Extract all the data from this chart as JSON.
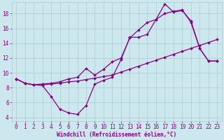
{
  "xlabel": "Windchill (Refroidissement éolien,°C)",
  "background_color": "#cce8ee",
  "grid_color": "#aacccc",
  "line_color": "#880088",
  "xlim": [
    -0.5,
    23.5
  ],
  "ylim": [
    3.5,
    19.5
  ],
  "xticks": [
    0,
    1,
    2,
    3,
    4,
    5,
    6,
    7,
    8,
    9,
    10,
    11,
    12,
    13,
    14,
    15,
    16,
    17,
    18,
    19,
    20,
    21,
    22,
    23
  ],
  "yticks": [
    4,
    6,
    8,
    10,
    12,
    14,
    16,
    18
  ],
  "series1_x": [
    0,
    1,
    2,
    3,
    4,
    5,
    6,
    7,
    8,
    9,
    10,
    11,
    12,
    13,
    14,
    15,
    16,
    17,
    18,
    19,
    20,
    21,
    22,
    23
  ],
  "series1_y": [
    9.2,
    8.6,
    8.4,
    8.3,
    6.8,
    5.1,
    4.6,
    4.4,
    5.6,
    8.5,
    9.0,
    9.4,
    11.8,
    14.8,
    14.8,
    15.2,
    17.2,
    19.3,
    18.2,
    18.4,
    17.0,
    13.3,
    11.6,
    11.6
  ],
  "series2_x": [
    0,
    1,
    2,
    3,
    4,
    5,
    6,
    7,
    8,
    9,
    10,
    11,
    12,
    13,
    14,
    15,
    16,
    17,
    18,
    19,
    20,
    21,
    22,
    23
  ],
  "series2_y": [
    9.2,
    8.6,
    8.4,
    8.4,
    8.5,
    8.6,
    8.8,
    8.9,
    9.1,
    9.3,
    9.5,
    9.7,
    10.1,
    10.5,
    10.9,
    11.3,
    11.7,
    12.1,
    12.5,
    12.9,
    13.3,
    13.7,
    14.1,
    14.5
  ],
  "series3_x": [
    0,
    1,
    2,
    3,
    4,
    5,
    6,
    7,
    8,
    9,
    10,
    11,
    12,
    13,
    14,
    15,
    16,
    17,
    18,
    19,
    20,
    21,
    22,
    23
  ],
  "series3_y": [
    9.2,
    8.6,
    8.4,
    8.5,
    8.6,
    8.8,
    9.2,
    9.4,
    10.6,
    9.7,
    10.5,
    11.5,
    12.0,
    14.7,
    15.8,
    16.8,
    17.2,
    18.0,
    18.3,
    18.5,
    16.8,
    13.3,
    11.6,
    11.6
  ],
  "marker": "D",
  "markersize": 2.0,
  "linewidth": 0.9,
  "tick_labelsize": 5.5,
  "xlabel_fontsize": 5.5
}
